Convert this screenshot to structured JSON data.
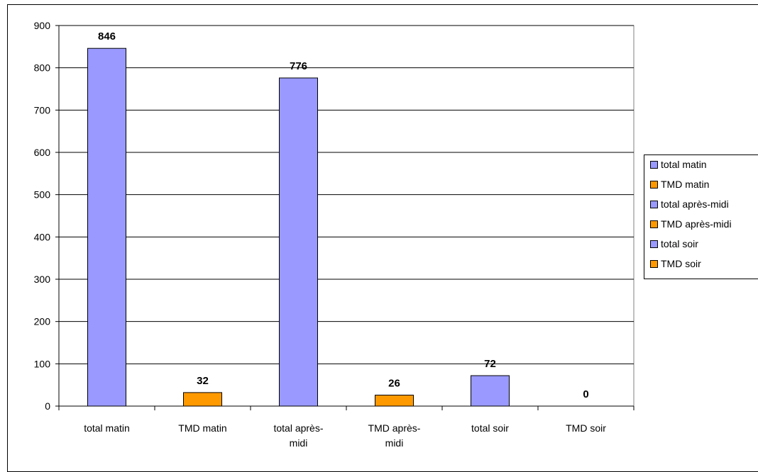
{
  "chart_data": {
    "type": "bar",
    "categories": [
      "total matin",
      "TMD matin",
      "total après-midi",
      "TMD après-midi",
      "total soir",
      "TMD soir"
    ],
    "values": [
      846,
      32,
      776,
      26,
      72,
      0
    ],
    "bar_colors": [
      "#9999ff",
      "#ff9900",
      "#9999ff",
      "#ff9900",
      "#9999ff",
      "#ff9900"
    ],
    "ylim": [
      0,
      900
    ],
    "yticks": [
      0,
      100,
      200,
      300,
      400,
      500,
      600,
      700,
      800,
      900
    ],
    "grid": true,
    "legend_position": "right",
    "legend": [
      {
        "label": "total matin",
        "color": "#9999ff"
      },
      {
        "label": "TMD matin",
        "color": "#ff9900"
      },
      {
        "label": "total après-midi",
        "color": "#9999ff"
      },
      {
        "label": "TMD après-midi",
        "color": "#ff9900"
      },
      {
        "label": "total soir",
        "color": "#9999ff"
      },
      {
        "label": "TMD soir",
        "color": "#ff9900"
      }
    ]
  }
}
